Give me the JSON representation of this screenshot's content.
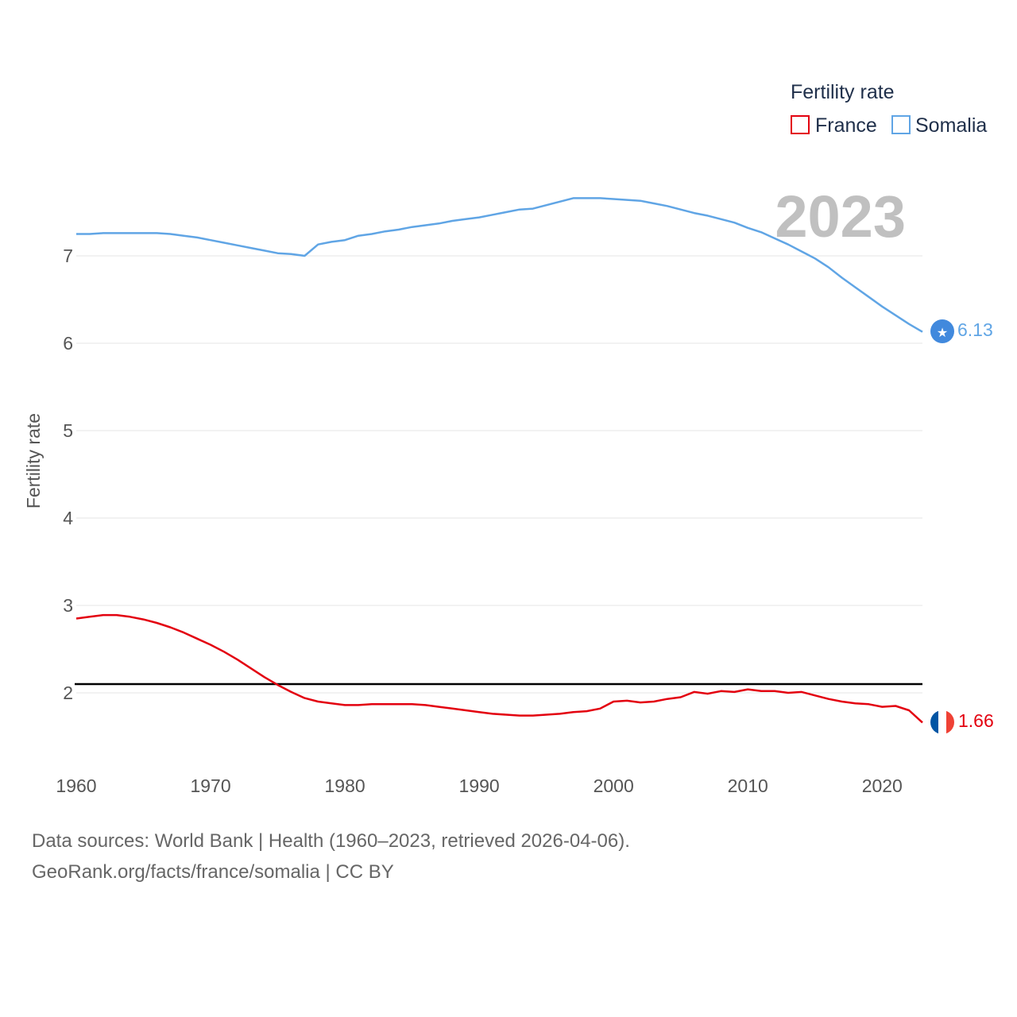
{
  "chart_data": {
    "type": "line",
    "title": "",
    "ylabel": "Fertility rate",
    "xlabel": "",
    "ylim": [
      1.2,
      8.0
    ],
    "xlim": [
      1960,
      2023
    ],
    "xticks": [
      1960,
      1970,
      1980,
      1990,
      2000,
      2010,
      2020
    ],
    "yticks": [
      2,
      3,
      4,
      5,
      6,
      7
    ],
    "legend_title": "Fertility rate",
    "year_label": "2023",
    "reference_line": 2.1,
    "x": [
      1960,
      1961,
      1962,
      1963,
      1964,
      1965,
      1966,
      1967,
      1968,
      1969,
      1970,
      1971,
      1972,
      1973,
      1974,
      1975,
      1976,
      1977,
      1978,
      1979,
      1980,
      1981,
      1982,
      1983,
      1984,
      1985,
      1986,
      1987,
      1988,
      1989,
      1990,
      1991,
      1992,
      1993,
      1994,
      1995,
      1996,
      1997,
      1998,
      1999,
      2000,
      2001,
      2002,
      2003,
      2004,
      2005,
      2006,
      2007,
      2008,
      2009,
      2010,
      2011,
      2012,
      2013,
      2014,
      2015,
      2016,
      2017,
      2018,
      2019,
      2020,
      2021,
      2022,
      2023
    ],
    "series": [
      {
        "name": "France",
        "color": "#e3000f",
        "end_value": "1.66",
        "flag": "france-flag-icon",
        "values": [
          2.85,
          2.87,
          2.89,
          2.89,
          2.87,
          2.84,
          2.8,
          2.75,
          2.69,
          2.62,
          2.55,
          2.47,
          2.38,
          2.28,
          2.18,
          2.09,
          2.01,
          1.94,
          1.9,
          1.88,
          1.86,
          1.86,
          1.87,
          1.87,
          1.87,
          1.87,
          1.86,
          1.84,
          1.82,
          1.8,
          1.78,
          1.76,
          1.75,
          1.74,
          1.74,
          1.75,
          1.76,
          1.78,
          1.79,
          1.82,
          1.9,
          1.91,
          1.89,
          1.9,
          1.93,
          1.95,
          2.01,
          1.99,
          2.02,
          2.01,
          2.04,
          2.02,
          2.02,
          2.0,
          2.01,
          1.97,
          1.93,
          1.9,
          1.88,
          1.87,
          1.84,
          1.85,
          1.8,
          1.66
        ]
      },
      {
        "name": "Somalia",
        "color": "#60a5e5",
        "end_value": "6.13",
        "flag": "somalia-flag-icon",
        "values": [
          7.25,
          7.25,
          7.26,
          7.26,
          7.26,
          7.26,
          7.26,
          7.25,
          7.23,
          7.21,
          7.18,
          7.15,
          7.12,
          7.09,
          7.06,
          7.03,
          7.02,
          7.0,
          7.13,
          7.16,
          7.18,
          7.23,
          7.25,
          7.28,
          7.3,
          7.33,
          7.35,
          7.37,
          7.4,
          7.42,
          7.44,
          7.47,
          7.5,
          7.53,
          7.54,
          7.58,
          7.62,
          7.66,
          7.66,
          7.66,
          7.65,
          7.64,
          7.63,
          7.6,
          7.57,
          7.53,
          7.49,
          7.46,
          7.42,
          7.38,
          7.32,
          7.27,
          7.2,
          7.13,
          7.05,
          6.97,
          6.87,
          6.75,
          6.64,
          6.53,
          6.42,
          6.32,
          6.22,
          6.13
        ]
      }
    ]
  },
  "footer": {
    "sources": "Data sources: World Bank | Health (1960–2023, retrieved 2026-04-06).",
    "credit": "GeoRank.org/facts/france/somalia | CC BY"
  }
}
